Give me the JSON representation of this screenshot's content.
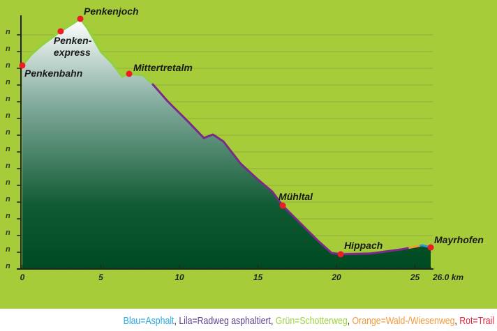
{
  "chart_data": {
    "type": "area",
    "title": "",
    "xlabel": "km",
    "ylabel": "",
    "xlim": [
      0,
      26
    ],
    "ylim": [
      0,
      15
    ],
    "x_ticks": [
      "0",
      "5",
      "10",
      "15",
      "20",
      "25"
    ],
    "x_end_label": "26.0 km",
    "y_tick_labels": [
      "n",
      "n",
      "n",
      "n",
      "n",
      "n",
      "n",
      "n",
      "n",
      "n",
      "n",
      "n",
      "n",
      "n",
      "n"
    ],
    "profile": [
      [
        0,
        12.17
      ],
      [
        0.58,
        12.83
      ],
      [
        1.24,
        13.38
      ],
      [
        2.44,
        14.21
      ],
      [
        3.69,
        14.96
      ],
      [
        4.13,
        14.42
      ],
      [
        5.02,
        12.96
      ],
      [
        5.69,
        12.33
      ],
      [
        6.36,
        11.5
      ],
      [
        6.8,
        11.67
      ],
      [
        7.69,
        11.58
      ],
      [
        8.27,
        11.08
      ],
      [
        9.24,
        10.04
      ],
      [
        10.58,
        8.79
      ],
      [
        11.56,
        7.83
      ],
      [
        12.13,
        8.04
      ],
      [
        12.8,
        7.63
      ],
      [
        13.91,
        6.29
      ],
      [
        15.02,
        5.33
      ],
      [
        15.91,
        4.63
      ],
      [
        16.58,
        3.79
      ],
      [
        17.69,
        2.75
      ],
      [
        18.8,
        1.71
      ],
      [
        19.69,
        0.96
      ],
      [
        20.27,
        0.88
      ],
      [
        22.13,
        0.92
      ],
      [
        24.13,
        1.17
      ],
      [
        25.47,
        1.42
      ],
      [
        26.0,
        1.29
      ]
    ],
    "surface_segments": [
      {
        "type": "green",
        "from_km": 0,
        "to_km": 8.27,
        "color": "#8fd13f"
      },
      {
        "type": "lila",
        "from_km": 8.27,
        "to_km": 24.6,
        "color": "#7b2a8c"
      },
      {
        "type": "orange",
        "from_km": 24.6,
        "to_km": 25.3,
        "color": "#f39a2e"
      },
      {
        "type": "blau",
        "from_km": 25.3,
        "to_km": 26.0,
        "color": "#2a9ad8"
      }
    ],
    "waypoints": [
      {
        "name": "Penkenbahn",
        "km": 0,
        "elev": 12.17
      },
      {
        "name": "Penken-",
        "name2": "express",
        "km": 2.44,
        "elev": 14.21
      },
      {
        "name": "Penkenjoch",
        "km": 3.69,
        "elev": 14.96
      },
      {
        "name": "Mittertretalm",
        "km": 6.8,
        "elev": 11.67
      },
      {
        "name": "Mühltal",
        "km": 16.58,
        "elev": 3.79
      },
      {
        "name": "Hippach",
        "km": 20.27,
        "elev": 0.88
      },
      {
        "name": "Mayrhofen",
        "km": 26.0,
        "elev": 1.29
      }
    ]
  },
  "legend": [
    {
      "text": "Blau=Asphalt",
      "color": "#2aa7df"
    },
    {
      "text": "Lila=Radweg asphaltiert",
      "color": "#5b3f8e"
    },
    {
      "text": "Grün=Schotterweg",
      "color": "#9bd13f"
    },
    {
      "text": "Orange=Wald-/Wiesenweg",
      "color": "#f39a3b"
    },
    {
      "text": "Rot=Trail",
      "color": "#e2233a"
    }
  ],
  "separator": ", "
}
